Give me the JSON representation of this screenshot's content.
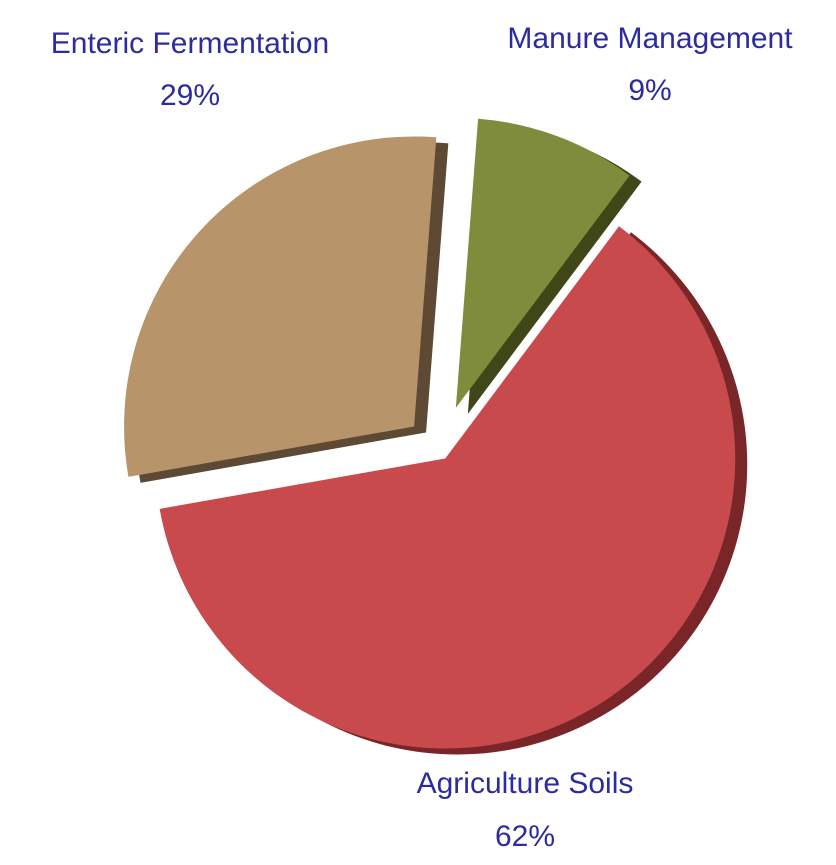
{
  "chart_data": {
    "type": "pie",
    "categories": [
      "Enteric Fermentation",
      "Manure Management",
      "Agriculture Soils"
    ],
    "values": [
      29,
      9,
      62
    ],
    "value_labels": [
      "29%",
      "9%",
      "62%"
    ],
    "colors": [
      "#b8946a",
      "#7f8c3c",
      "#c84a4d"
    ],
    "side_colors": [
      "#5e4a34",
      "#3f4618",
      "#7a2528"
    ],
    "label_color": "#2c2c9c"
  }
}
